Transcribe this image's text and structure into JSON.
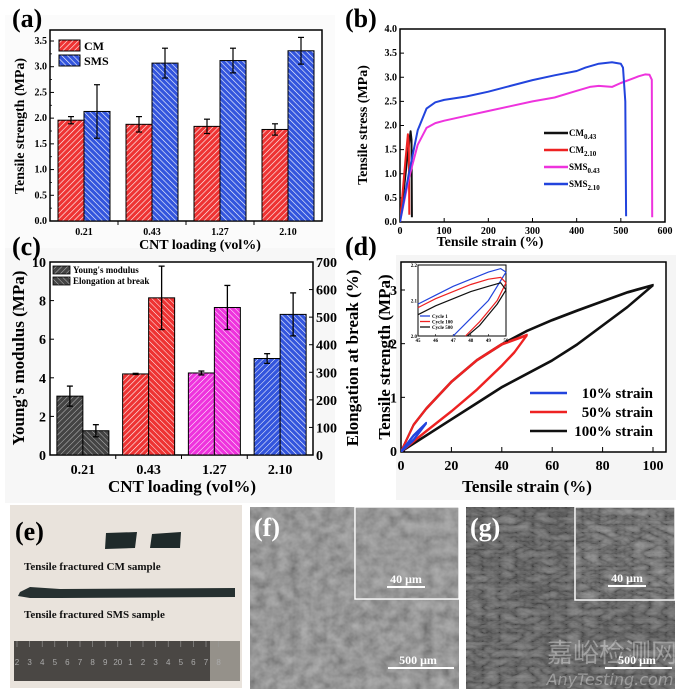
{
  "panels": {
    "a": "(a)",
    "b": "(b)",
    "c": "(c)",
    "d": "(d)",
    "e": "(e)",
    "f": "(f)",
    "g": "(g)"
  },
  "colors": {
    "cm": "#ee3333",
    "sms": "#3355dd",
    "black": "#111111",
    "red": "#ee2222",
    "magenta": "#ee33dd",
    "blue": "#2244dd",
    "gray": "#555555"
  },
  "chart_data": [
    {
      "id": "a",
      "type": "bar",
      "title": "",
      "xlabel": "CNT loading (vol%)",
      "ylabel": "Tensile strength (MPa)",
      "ylim": [
        0,
        3.5
      ],
      "yticks": [
        "0.0",
        "0.5",
        "1.0",
        "1.5",
        "2.0",
        "2.5",
        "3.0",
        "3.5"
      ],
      "categories": [
        "0.21",
        "0.43",
        "1.27",
        "2.10"
      ],
      "legend_position": "top-left",
      "series": [
        {
          "name": "CM",
          "values": [
            1.96,
            1.88,
            1.84,
            1.78
          ],
          "errors": [
            0.07,
            0.15,
            0.14,
            0.11
          ]
        },
        {
          "name": "SMS",
          "values": [
            2.13,
            3.07,
            3.12,
            3.31
          ],
          "errors": [
            0.52,
            0.29,
            0.24,
            0.26
          ]
        }
      ]
    },
    {
      "id": "b",
      "type": "line",
      "xlabel": "Tensile strain (%)",
      "ylabel": "Tensile stress (MPa)",
      "xlim": [
        0,
        600
      ],
      "ylim": [
        0,
        4.0
      ],
      "xticks": [
        "0",
        "100",
        "200",
        "300",
        "400",
        "500",
        "600"
      ],
      "yticks": [
        "0.0",
        "0.5",
        "1.0",
        "1.5",
        "2.0",
        "2.5",
        "3.0",
        "3.5",
        "4.0"
      ],
      "legend_position": "center-right",
      "series": [
        {
          "name": "CM",
          "sub": "0.43",
          "x": [
            0,
            8,
            16,
            24,
            26,
            27
          ],
          "y": [
            0,
            0.6,
            1.3,
            1.88,
            1.7,
            0.1
          ]
        },
        {
          "name": "CM",
          "sub": "2.10",
          "x": [
            0,
            6,
            12,
            18,
            20,
            21
          ],
          "y": [
            0,
            0.6,
            1.25,
            1.82,
            1.6,
            0.15
          ]
        },
        {
          "name": "SMS",
          "sub": "0.43",
          "x": [
            0,
            20,
            40,
            60,
            80,
            100,
            150,
            200,
            250,
            300,
            350,
            400,
            430,
            450,
            480,
            500,
            520,
            540,
            555,
            565,
            570,
            571
          ],
          "y": [
            0,
            0.9,
            1.6,
            1.95,
            2.05,
            2.1,
            2.2,
            2.3,
            2.4,
            2.5,
            2.58,
            2.72,
            2.8,
            2.82,
            2.8,
            2.88,
            2.95,
            3.02,
            3.06,
            3.05,
            2.95,
            0.1
          ]
        },
        {
          "name": "SMS",
          "sub": "2.10",
          "x": [
            0,
            20,
            40,
            60,
            80,
            100,
            150,
            200,
            250,
            300,
            350,
            400,
            420,
            450,
            480,
            500,
            505,
            510,
            512
          ],
          "y": [
            0,
            1.0,
            1.9,
            2.35,
            2.48,
            2.53,
            2.6,
            2.7,
            2.82,
            2.94,
            3.04,
            3.13,
            3.2,
            3.28,
            3.31,
            3.28,
            3.2,
            2.5,
            0.12
          ]
        }
      ]
    },
    {
      "id": "c",
      "type": "bar",
      "xlabel": "CNT loading (vol%)",
      "ylabel": "Young's modulus (MPa)",
      "y2label": "Elongation at break (%)",
      "ylim": [
        0,
        10
      ],
      "y2lim": [
        0,
        700
      ],
      "yticks": [
        "0",
        "2",
        "4",
        "6",
        "8",
        "10"
      ],
      "y2ticks": [
        "0",
        "100",
        "200",
        "300",
        "400",
        "500",
        "600",
        "700"
      ],
      "categories": [
        "0.21",
        "0.43",
        "1.27",
        "2.10"
      ],
      "legend_position": "top-left",
      "series": [
        {
          "name": "Young's modulus",
          "axis": "left",
          "values": [
            3.05,
            4.2,
            4.25,
            5.0
          ],
          "errors": [
            0.52,
            0.03,
            0.1,
            0.25
          ]
        },
        {
          "name": "Elongation at break",
          "axis": "right",
          "values": [
            88,
            570,
            535,
            510
          ],
          "errors": [
            22,
            115,
            80,
            78
          ]
        }
      ],
      "bar_colors": [
        "#444444",
        "#ee3333",
        "#ee33dd",
        "#3355dd"
      ]
    },
    {
      "id": "d",
      "type": "line",
      "xlabel": "Tensile strain (%)",
      "ylabel": "Tensile strength (MPa)",
      "xlim": [
        0,
        100
      ],
      "ylim": [
        0,
        3.5
      ],
      "xticks": [
        "0",
        "20",
        "40",
        "60",
        "80",
        "100"
      ],
      "yticks": [
        "0",
        "1",
        "2",
        "3"
      ],
      "legend_position": "bottom-right",
      "series": [
        {
          "name": "10% strain",
          "load": {
            "x": [
              0,
              5,
              10
            ],
            "y": [
              0,
              0.3,
              0.53
            ]
          },
          "unload": {
            "x": [
              10,
              5,
              0
            ],
            "y": [
              0.53,
              0.22,
              0
            ]
          }
        },
        {
          "name": "50% strain",
          "load": {
            "x": [
              0,
              5,
              10,
              20,
              30,
              40,
              50
            ],
            "y": [
              0,
              0.5,
              0.8,
              1.3,
              1.7,
              2.0,
              2.17
            ]
          },
          "unload": {
            "x": [
              50,
              45,
              40,
              30,
              20,
              10,
              0
            ],
            "y": [
              2.17,
              1.85,
              1.6,
              1.15,
              0.75,
              0.38,
              0
            ]
          }
        },
        {
          "name": "100% strain",
          "load": {
            "x": [
              0,
              5,
              10,
              20,
              30,
              40,
              50,
              60,
              70,
              80,
              90,
              100
            ],
            "y": [
              0,
              0.5,
              0.8,
              1.3,
              1.7,
              2.0,
              2.25,
              2.45,
              2.63,
              2.8,
              2.97,
              3.1
            ]
          },
          "unload": {
            "x": [
              100,
              90,
              80,
              70,
              60,
              50,
              40,
              30,
              20,
              10,
              0
            ],
            "y": [
              3.1,
              2.7,
              2.35,
              2.0,
              1.7,
              1.45,
              1.2,
              0.9,
              0.6,
              0.3,
              0
            ]
          }
        }
      ],
      "inset": {
        "xlim": [
          45,
          50
        ],
        "ylim": [
          2.0,
          2.2
        ],
        "xticks": [
          "45",
          "46",
          "47",
          "48",
          "49",
          "50"
        ],
        "yticks": [
          "2.0",
          "2.1",
          "2.2"
        ],
        "series": [
          {
            "name": "Cycle 1",
            "load": {
              "x": [
                45,
                46,
                47,
                48,
                49,
                49.7,
                50
              ],
              "y": [
                2.09,
                2.115,
                2.14,
                2.16,
                2.18,
                2.19,
                2.18
              ]
            },
            "unload": {
              "x": [
                50,
                49.5,
                49,
                48,
                47
              ],
              "y": [
                2.18,
                2.14,
                2.1,
                2.05,
                2.0
              ]
            }
          },
          {
            "name": "Cycle 100",
            "load": {
              "x": [
                45,
                46,
                47,
                48,
                49,
                49.7,
                50
              ],
              "y": [
                2.08,
                2.105,
                2.125,
                2.145,
                2.16,
                2.165,
                2.15
              ]
            },
            "unload": {
              "x": [
                50,
                49.5,
                49,
                48.5,
                47.7
              ],
              "y": [
                2.15,
                2.1,
                2.07,
                2.04,
                2.0
              ]
            }
          },
          {
            "name": "Cycle 500",
            "load": {
              "x": [
                45,
                46,
                47,
                48,
                49,
                49.7,
                50
              ],
              "y": [
                2.06,
                2.085,
                2.105,
                2.125,
                2.14,
                2.15,
                2.13
              ]
            },
            "unload": {
              "x": [
                50,
                49.5,
                49,
                48.5,
                47.8
              ],
              "y": [
                2.13,
                2.09,
                2.06,
                2.03,
                2.0
              ]
            }
          }
        ]
      }
    }
  ],
  "photo_e": {
    "cm_caption": "Tensile fractured CM sample",
    "sms_caption": "Tensile fractured SMS sample",
    "ruler_numbers": [
      "2",
      "3",
      "4",
      "5",
      "6",
      "7",
      "8",
      "9",
      "20",
      "1",
      "2",
      "3",
      "4",
      "5",
      "6",
      "7",
      "8"
    ]
  },
  "sem_f": {
    "inset_scale": "40 μm",
    "main_scale": "500 μm"
  },
  "sem_g": {
    "inset_scale": "40 μm",
    "main_scale": "500 μm"
  },
  "watermark": {
    "cn": "嘉峪检测网",
    "en": "AnyTesting.com"
  }
}
